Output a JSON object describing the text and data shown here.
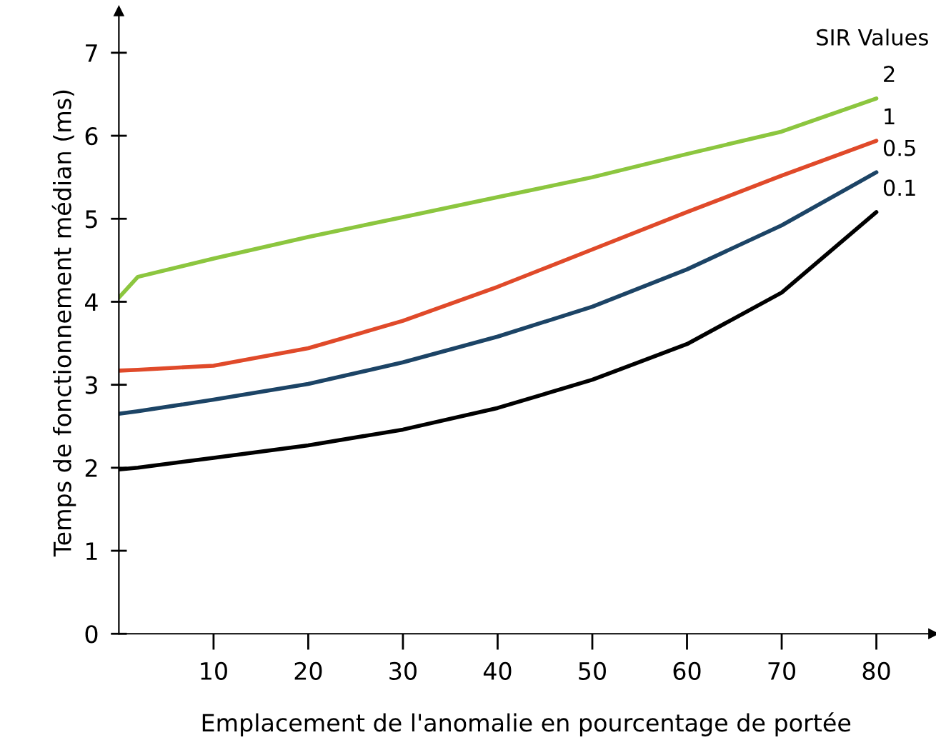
{
  "chart_data": {
    "type": "line",
    "xlabel": "Emplacement de l'anomalie en pourcentage de portée",
    "ylabel": "Temps de fonctionnement médian (ms)",
    "legend_title": "SIR Values",
    "x": [
      0,
      2,
      10,
      20,
      30,
      40,
      50,
      60,
      70,
      80
    ],
    "series": [
      {
        "name": "2",
        "color": "#8cc63f",
        "values": [
          4.05,
          4.3,
          4.52,
          4.78,
          5.02,
          5.26,
          5.5,
          5.78,
          6.05,
          6.45
        ]
      },
      {
        "name": "1",
        "color": "#e04a2a",
        "values": [
          3.17,
          3.18,
          3.23,
          3.44,
          3.77,
          4.18,
          4.63,
          5.08,
          5.52,
          5.94
        ]
      },
      {
        "name": "0.5",
        "color": "#1c4466",
        "values": [
          2.65,
          2.68,
          2.82,
          3.01,
          3.27,
          3.58,
          3.94,
          4.39,
          4.92,
          5.56
        ]
      },
      {
        "name": "0.1",
        "color": "#000000",
        "values": [
          1.98,
          2.0,
          2.12,
          2.27,
          2.46,
          2.72,
          3.06,
          3.49,
          4.11,
          5.08
        ]
      }
    ],
    "xlim": [
      0,
      86
    ],
    "ylim": [
      0,
      7.5
    ],
    "xticks": [
      10,
      20,
      30,
      40,
      50,
      60,
      70,
      80
    ],
    "yticks": [
      0,
      1,
      2,
      3,
      4,
      5,
      6,
      7
    ],
    "grid": false,
    "legend": false,
    "marker": "none",
    "line_style": "solid"
  }
}
